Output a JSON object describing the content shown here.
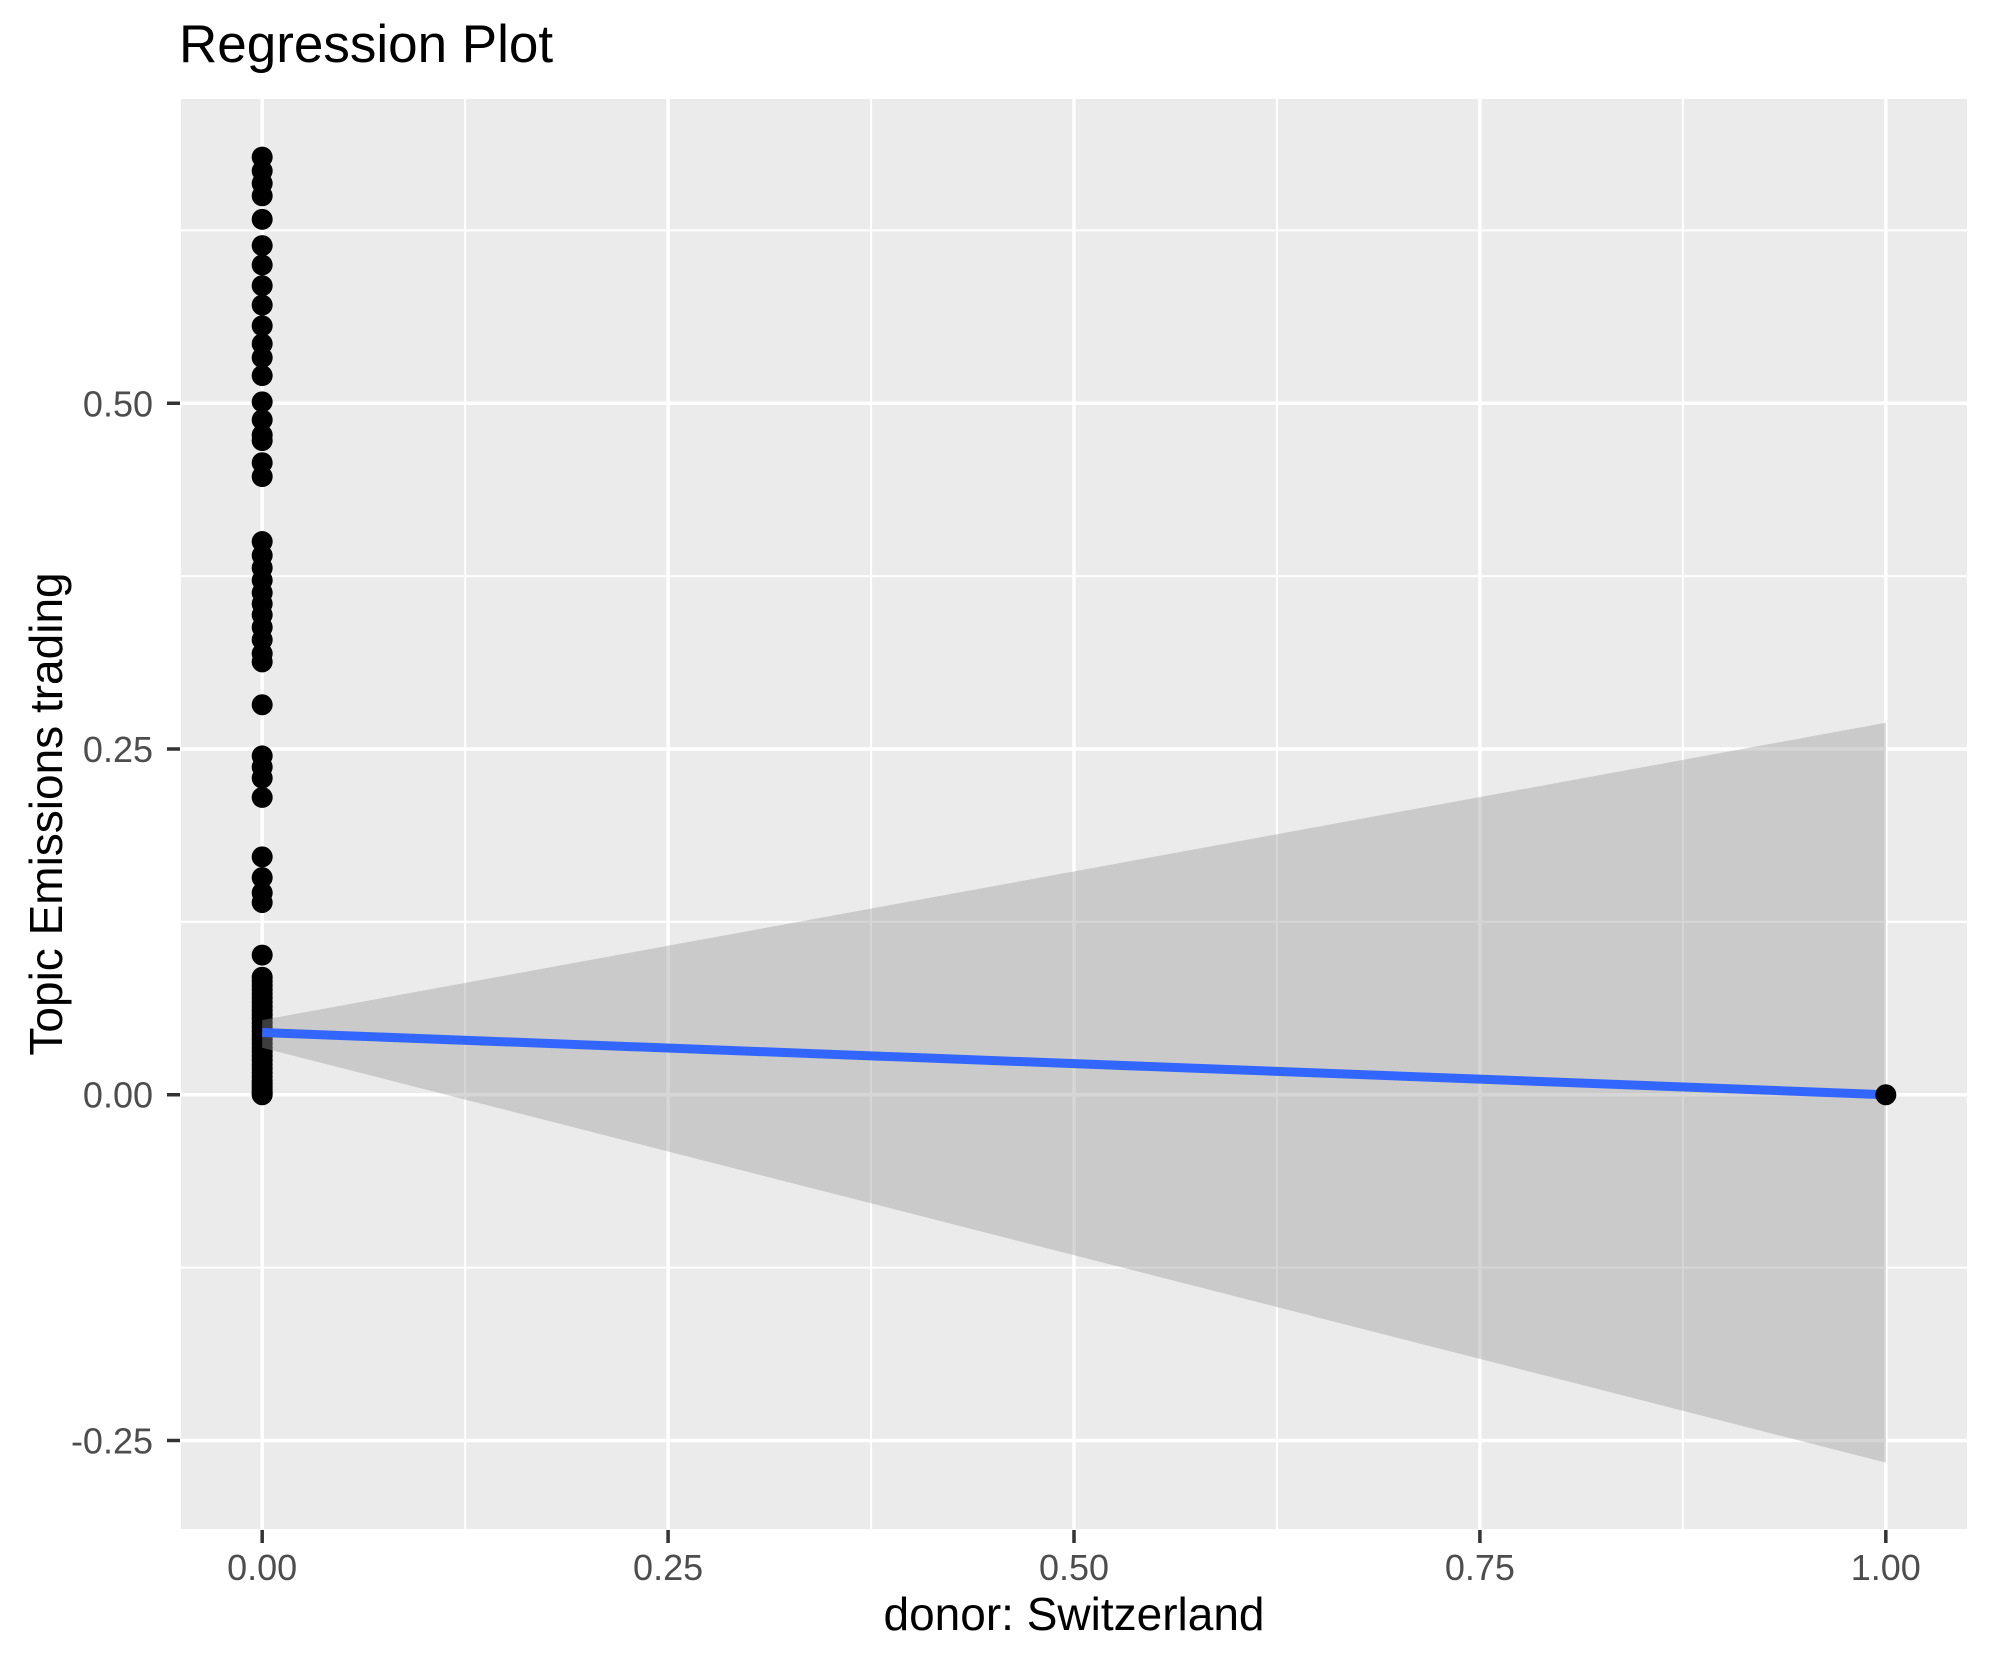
{
  "title": "Regression Plot",
  "chart_data": {
    "type": "scatter",
    "title": "Regression Plot",
    "xlabel": "donor: Switzerland",
    "ylabel": "Topic Emissions trading",
    "xlim": [
      -0.05,
      1.05
    ],
    "ylim": [
      -0.314,
      0.72
    ],
    "x_ticks": [
      0,
      0.25,
      0.5,
      0.75,
      1.0
    ],
    "x_tick_labels": [
      "0.00",
      "0.25",
      "0.50",
      "0.75",
      "1.00"
    ],
    "y_ticks": [
      -0.25,
      0,
      0.25,
      0.5
    ],
    "y_tick_labels": [
      "-0.25",
      "0.00",
      "0.25",
      "0.50"
    ],
    "x_minor_ticks": [
      0.125,
      0.375,
      0.625,
      0.875
    ],
    "y_minor_ticks": [
      -0.125,
      0.125,
      0.375,
      0.625
    ],
    "grid": "white major and minor gridlines on gray panel",
    "legend": "none",
    "series": [
      {
        "name": "observations at x = 0",
        "type": "points",
        "x": 0,
        "y_values": [
          0.678,
          0.668,
          0.659,
          0.65,
          0.633,
          0.614,
          0.6,
          0.585,
          0.571,
          0.556,
          0.543,
          0.533,
          0.52,
          0.501,
          0.488,
          0.477,
          0.473,
          0.457,
          0.447,
          0.4,
          0.39,
          0.381,
          0.372,
          0.363,
          0.355,
          0.347,
          0.338,
          0.329,
          0.319,
          0.313,
          0.282,
          0.245,
          0.237,
          0.229,
          0.215,
          0.172,
          0.157,
          0.146,
          0.139,
          0.101,
          0.085,
          0.082,
          0.079,
          0.076,
          0.073,
          0.07,
          0.067,
          0.064,
          0.061,
          0.058,
          0.055,
          0.052,
          0.049,
          0.046,
          0.043,
          0.04,
          0.037,
          0.034,
          0.031,
          0.028,
          0.025,
          0.022,
          0.019,
          0.016,
          0.013,
          0.01,
          0.008,
          0.006,
          0.004,
          0.002,
          0.001,
          0.0
        ]
      },
      {
        "name": "observation at x = 1",
        "type": "points",
        "x": 1,
        "y_values": [
          0.0
        ]
      },
      {
        "name": "regression line",
        "type": "line",
        "x": [
          0,
          1
        ],
        "y": [
          0.045,
          0.0
        ]
      },
      {
        "name": "confidence band",
        "type": "ribbon",
        "x": [
          0,
          1
        ],
        "ymax": [
          0.054,
          0.269
        ],
        "ymin": [
          0.034,
          -0.266
        ]
      }
    ],
    "colors": {
      "panel_background": "#EBEBEB",
      "gridline": "#FFFFFF",
      "point": "#000000",
      "regression_line": "#3366FF",
      "confidence_band": "#999999",
      "confidence_band_opacity": 0.4,
      "tick_label": "#4D4D4D",
      "tick_mark": "#333333",
      "title_text": "#000000",
      "axis_title_text": "#000000"
    }
  }
}
